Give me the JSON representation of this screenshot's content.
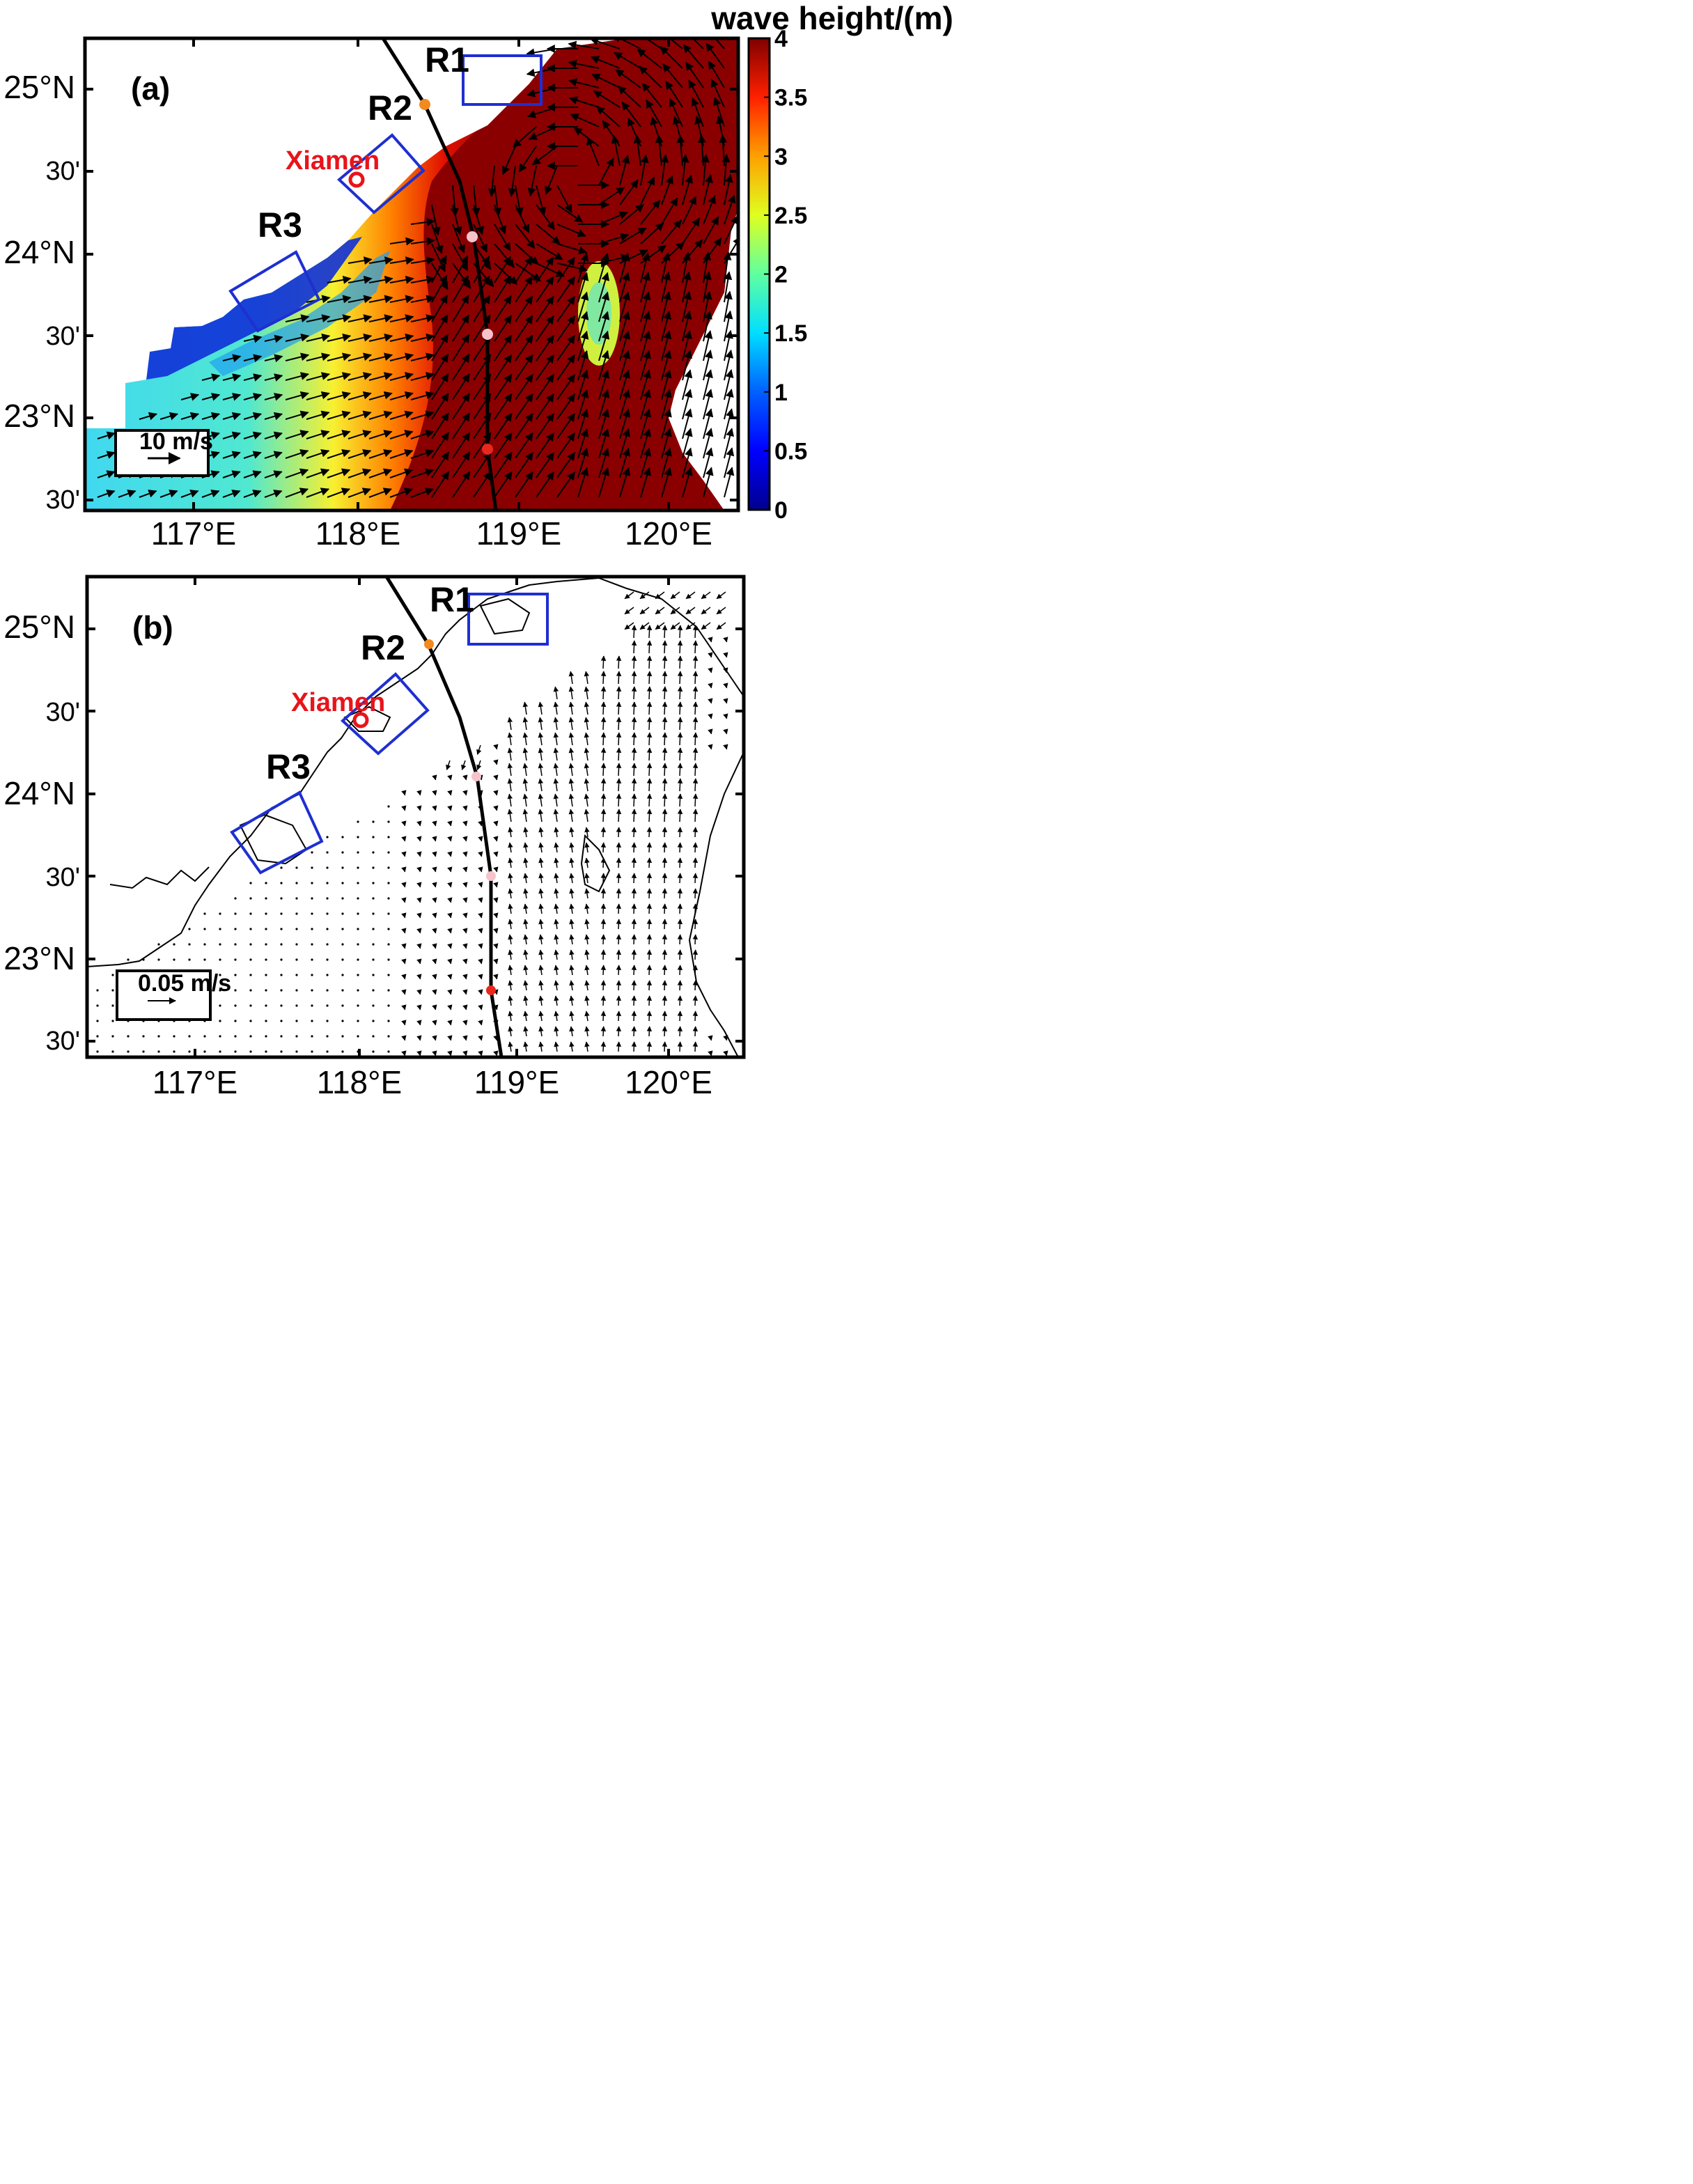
{
  "colorbar": {
    "title": "wave height/(m)",
    "ticks": [
      "0",
      "0.5",
      "1",
      "1.5",
      "2",
      "2.5",
      "3",
      "3.5",
      "4"
    ],
    "range": [
      0,
      4
    ],
    "colormap": "jet"
  },
  "axes": {
    "lon_labels": [
      "117°E",
      "118°E",
      "119°E",
      "120°E"
    ],
    "lat_labels": [
      "30'",
      "23°N",
      "30'",
      "24°N",
      "30'",
      "25°N"
    ],
    "lon_range": [
      116.3,
      120.5
    ],
    "lat_range": [
      22.45,
      25.3
    ]
  },
  "panels": [
    {
      "id": "a",
      "label": "(a)",
      "description_field": "wave height with wind vectors",
      "scale_label": "10 m/s",
      "regions": [
        "R1",
        "R2",
        "R3"
      ],
      "city": "Xiamen"
    },
    {
      "id": "b",
      "label": "(b)",
      "description_field": "current vectors with coastline",
      "scale_label": "0.05 m/s",
      "regions": [
        "R1",
        "R2",
        "R3"
      ],
      "city": "Xiamen"
    }
  ],
  "track": {
    "color": "#000000",
    "markers": [
      {
        "lat": 24.9,
        "lon": 118.5,
        "color": "#f28a1e"
      },
      {
        "lat": 24.1,
        "lon": 118.8,
        "color": "#f5c3c9"
      },
      {
        "lat": 23.5,
        "lon": 118.9,
        "color": "#f5c3c9"
      },
      {
        "lat": 22.8,
        "lon": 118.9,
        "color": "#e8281f"
      }
    ]
  },
  "colors": {
    "region_box": "#1f2fd1",
    "city": "#e8141a",
    "frame": "#000000"
  }
}
